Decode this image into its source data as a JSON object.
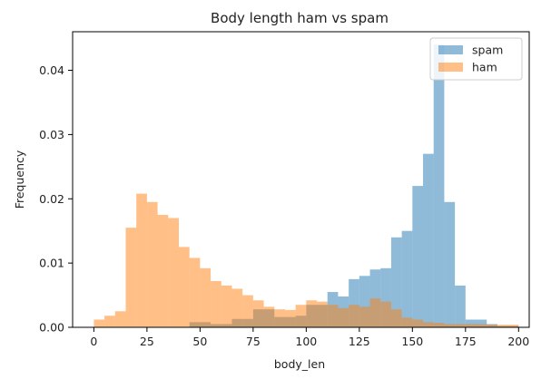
{
  "chart_data": {
    "type": "histogram",
    "title": "Body length ham vs spam",
    "xlabel": "body_len",
    "ylabel": "Frequency",
    "xlim": [
      -10,
      205
    ],
    "ylim": [
      0,
      0.046
    ],
    "xticks": [
      0,
      25,
      50,
      75,
      100,
      125,
      150,
      175,
      200
    ],
    "yticks": [
      0.0,
      0.01,
      0.02,
      0.03,
      0.04
    ],
    "ytick_labels": [
      "0.00",
      "0.01",
      "0.02",
      "0.03",
      "0.04"
    ],
    "bin_start": 0,
    "bin_width": 5,
    "bin_count": 40,
    "legend": {
      "position": "top-right"
    },
    "series": [
      {
        "name": "spam",
        "color": "#1f77b4",
        "alpha": 0.5,
        "values": [
          0,
          0,
          0,
          0,
          0,
          0,
          0,
          0,
          0,
          0.0008,
          0.0008,
          0.0005,
          0.0005,
          0.0013,
          0.0013,
          0.0028,
          0.0028,
          0.0016,
          0.0016,
          0.0018,
          0.0035,
          0.0035,
          0.0055,
          0.0048,
          0.0075,
          0.008,
          0.009,
          0.0092,
          0.014,
          0.015,
          0.022,
          0.027,
          0.044,
          0.0195,
          0.0065,
          0.0012,
          0.0012,
          0.0005,
          0.0002,
          0.0002
        ]
      },
      {
        "name": "ham",
        "color": "#ff7f0e",
        "alpha": 0.5,
        "values": [
          0.0012,
          0.0018,
          0.0025,
          0.0155,
          0.0208,
          0.0195,
          0.0175,
          0.017,
          0.0125,
          0.0108,
          0.0092,
          0.0072,
          0.0065,
          0.006,
          0.005,
          0.0042,
          0.0032,
          0.0028,
          0.0027,
          0.0035,
          0.0042,
          0.004,
          0.0035,
          0.003,
          0.0035,
          0.0032,
          0.0045,
          0.004,
          0.0028,
          0.0015,
          0.0012,
          0.0008,
          0.0007,
          0.0005,
          0.0005,
          0.0005,
          0.0005,
          0.0004,
          0.0004,
          0.0004
        ]
      }
    ]
  }
}
